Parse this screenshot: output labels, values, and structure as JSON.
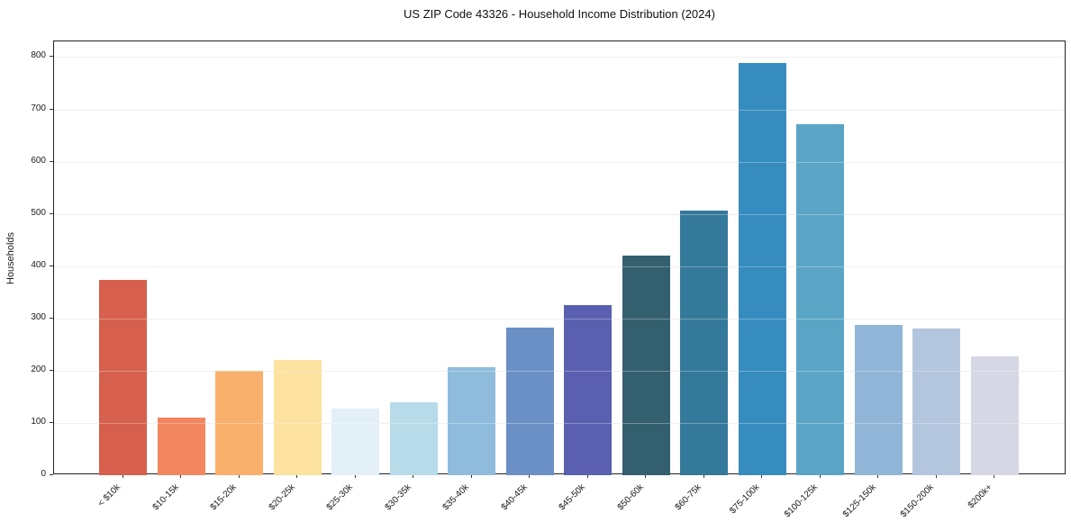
{
  "chart_data": {
    "type": "bar",
    "title": "US ZIP Code 43326 - Household Income Distribution (2024)",
    "xlabel": "",
    "ylabel": "Households",
    "categories": [
      "< $10k",
      "$10-15k",
      "$15-20k",
      "$20-25k",
      "$25-30k",
      "$30-35k",
      "$35-40k",
      "$40-45k",
      "$45-50k",
      "$50-60k",
      "$60-75k",
      "$75-100k",
      "$100-125k",
      "$125-150k",
      "$150-200k",
      "$200k+"
    ],
    "values": [
      373,
      111,
      199,
      220,
      128,
      140,
      206,
      283,
      325,
      420,
      506,
      789,
      671,
      288,
      281,
      227
    ],
    "colors": [
      "#d6604d",
      "#f1865f",
      "#f9b06c",
      "#fde2a0",
      "#e3f0f7",
      "#b7dbe9",
      "#8fbcdc",
      "#6a90c5",
      "#5a60af",
      "#345f6f",
      "#35799a",
      "#378cbf",
      "#5aa5c6",
      "#90b5d7",
      "#b4c5de",
      "#d5d7e5"
    ],
    "yticks": [
      0,
      100,
      200,
      300,
      400,
      500,
      600,
      700,
      800
    ],
    "ylim": [
      0,
      830
    ],
    "grid": "horizontal",
    "legend": "none",
    "bar_orientation": "vertical",
    "x_tick_rotation_deg": 45
  }
}
